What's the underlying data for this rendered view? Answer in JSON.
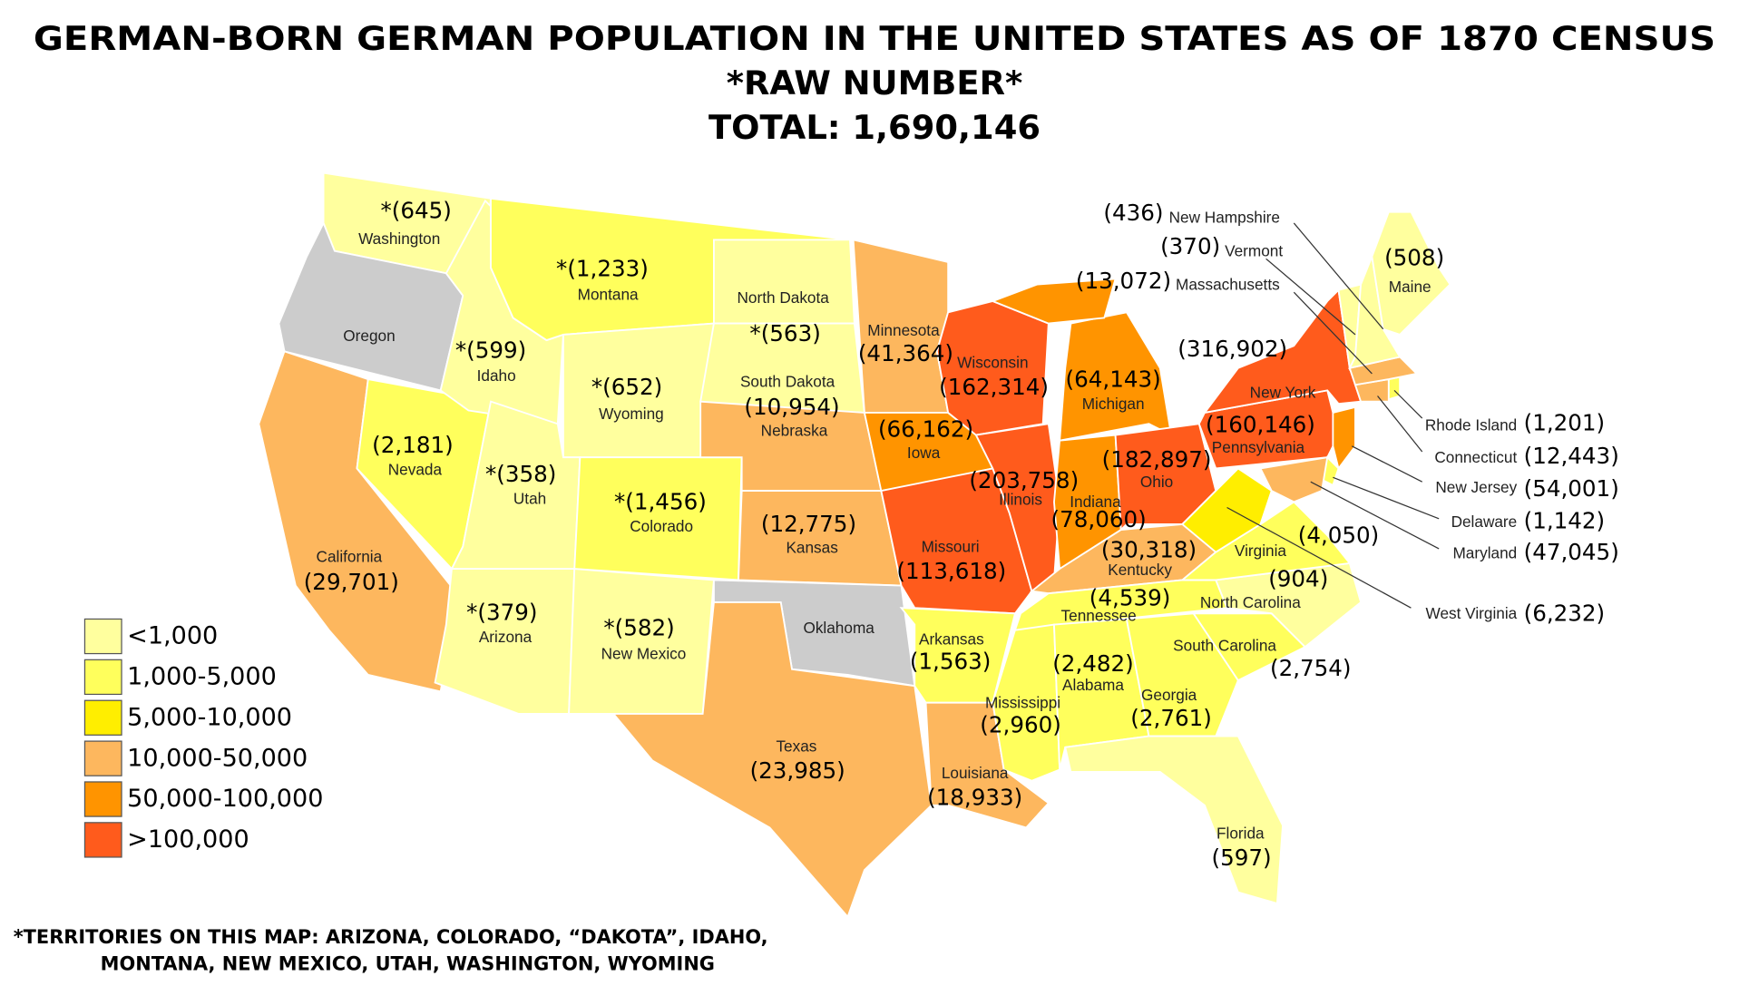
{
  "title": "GERMAN-BORN GERMAN POPULATION IN THE UNITED STATES AS OF 1870 CENSUS",
  "subtitle": "*RAW NUMBER*",
  "total": "TOTAL: 1,690,146",
  "legend": [
    {
      "label": "<1,000",
      "color": "#ffff9e"
    },
    {
      "label": "1,000-5,000",
      "color": "#ffff5c"
    },
    {
      "label": "5,000-10,000",
      "color": "#ffee00"
    },
    {
      "label": "10,000-50,000",
      "color": "#fdb75e"
    },
    {
      "label": "50,000-100,000",
      "color": "#ff9400"
    },
    {
      "label": ">100,000",
      "color": "#ff5b1c"
    }
  ],
  "states": [
    {
      "name": "Washington",
      "label": "*(645)",
      "color": "#ffff9e"
    },
    {
      "name": "Oregon",
      "color": "#cccccc"
    },
    {
      "name": "California",
      "label": "(29,701)",
      "color": "#fdb75e"
    },
    {
      "name": "Nevada",
      "label": "(2,181)",
      "color": "#ffff5c"
    },
    {
      "name": "Idaho",
      "label": "*(599)",
      "color": "#ffff9e"
    },
    {
      "name": "Montana",
      "label": "*(1,233)",
      "color": "#ffff5c"
    },
    {
      "name": "Wyoming",
      "label": "*(652)",
      "color": "#ffff9e"
    },
    {
      "name": "Utah",
      "label": "*(358)",
      "color": "#ffff9e"
    },
    {
      "name": "Colorado",
      "label": "*(1,456)",
      "color": "#ffff5c"
    },
    {
      "name": "Arizona",
      "label": "*(379)",
      "color": "#ffff9e"
    },
    {
      "name": "New Mexico",
      "label": "*(582)",
      "color": "#ffff9e"
    },
    {
      "name": "North Dakota",
      "color": "#ffff9e"
    },
    {
      "name": "South Dakota",
      "label": "*(563)",
      "color": "#ffff9e"
    },
    {
      "name": "Nebraska",
      "label": "(10,954)",
      "color": "#fdb75e"
    },
    {
      "name": "Kansas",
      "label": "(12,775)",
      "color": "#fdb75e"
    },
    {
      "name": "Oklahoma",
      "color": "#cccccc"
    },
    {
      "name": "Texas",
      "label": "(23,985)",
      "color": "#fdb75e"
    },
    {
      "name": "Minnesota",
      "label": "(41,364)",
      "color": "#fdb75e"
    },
    {
      "name": "Iowa",
      "label": "(66,162)",
      "color": "#ff9400"
    },
    {
      "name": "Missouri",
      "label": "(113,618)",
      "color": "#ff5b1c"
    },
    {
      "name": "Arkansas",
      "label": "(1,563)",
      "color": "#ffff5c"
    },
    {
      "name": "Louisiana",
      "label": "(18,933)",
      "color": "#fdb75e"
    },
    {
      "name": "Wisconsin",
      "label": "(162,314)",
      "color": "#ff5b1c"
    },
    {
      "name": "Illinois",
      "label": "(203,758)",
      "color": "#ff5b1c"
    },
    {
      "name": "Michigan",
      "label": "(64,143)",
      "color": "#ff9400"
    },
    {
      "name": "Indiana",
      "label": "(78,060)",
      "color": "#ff9400"
    },
    {
      "name": "Ohio",
      "label": "(182,897)",
      "color": "#ff5b1c"
    },
    {
      "name": "Kentucky",
      "label": "(30,318)",
      "color": "#fdb75e"
    },
    {
      "name": "Tennessee",
      "label": "(4,539)",
      "color": "#ffff5c"
    },
    {
      "name": "Mississippi",
      "label": "(2,960)",
      "color": "#ffff5c"
    },
    {
      "name": "Alabama",
      "label": "(2,482)",
      "color": "#ffff5c"
    },
    {
      "name": "Georgia",
      "label": "(2,761)",
      "color": "#ffff5c"
    },
    {
      "name": "Florida",
      "label": "(597)",
      "color": "#ffff9e"
    },
    {
      "name": "South Carolina",
      "label": "(2,754)",
      "color": "#ffff5c"
    },
    {
      "name": "North Carolina",
      "label": "(904)",
      "color": "#ffff9e"
    },
    {
      "name": "Virginia",
      "label": "(4,050)",
      "color": "#ffff5c"
    },
    {
      "name": "West Virginia",
      "label": "(6,232)",
      "color": "#ffee00"
    },
    {
      "name": "Pennsylvania",
      "label": "(160,146)",
      "color": "#ff5b1c"
    },
    {
      "name": "New York",
      "label": "(316,902)",
      "color": "#ff5b1c"
    },
    {
      "name": "New Jersey",
      "label": "(54,001)",
      "color": "#ff9400"
    },
    {
      "name": "Delaware",
      "label": "(1,142)",
      "color": "#ffff5c"
    },
    {
      "name": "Maryland",
      "label": "(47,045)",
      "color": "#fdb75e"
    },
    {
      "name": "Connecticut",
      "label": "(12,443)",
      "color": "#fdb75e"
    },
    {
      "name": "Rhode Island",
      "label": "(1,201)",
      "color": "#ffff5c"
    },
    {
      "name": "Massachusetts",
      "label": "(13,072)",
      "color": "#fdb75e"
    },
    {
      "name": "Vermont",
      "label": "(370)",
      "color": "#ffff9e"
    },
    {
      "name": "New Hampshire",
      "label": "(436)",
      "color": "#ffff9e"
    },
    {
      "name": "Maine",
      "label": "(508)",
      "color": "#ffff9e"
    }
  ],
  "footnote": [
    "*TERRITORIES ON THIS MAP:  ARIZONA, COLORADO, “DAKOTA”, IDAHO,",
    "MONTANA, NEW MEXICO, UTAH, WASHINGTON, WYOMING"
  ]
}
